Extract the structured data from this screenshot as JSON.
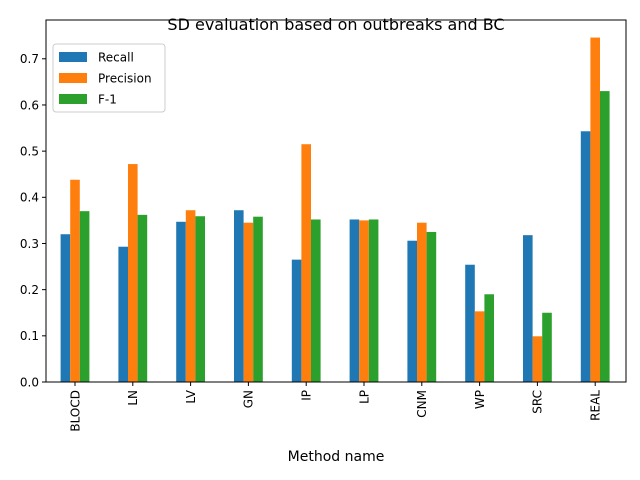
{
  "chart_data": {
    "type": "bar",
    "title": "SD evaluation based on outbreaks and BC",
    "xlabel": "Method name",
    "ylabel": "",
    "categories": [
      "BLOCD",
      "LN",
      "LV",
      "GN",
      "IP",
      "LP",
      "CNM",
      "WP",
      "SRC",
      "REAL"
    ],
    "series": [
      {
        "name": "Recall",
        "color": "#1f77b4",
        "values": [
          0.32,
          0.293,
          0.347,
          0.372,
          0.265,
          0.352,
          0.306,
          0.254,
          0.318,
          0.543
        ]
      },
      {
        "name": "Precision",
        "color": "#ff7f0e",
        "values": [
          0.438,
          0.472,
          0.372,
          0.345,
          0.515,
          0.35,
          0.345,
          0.153,
          0.099,
          0.746
        ]
      },
      {
        "name": "F-1",
        "color": "#2ca02c",
        "values": [
          0.37,
          0.362,
          0.359,
          0.358,
          0.352,
          0.352,
          0.325,
          0.19,
          0.15,
          0.63
        ]
      }
    ],
    "ylim": [
      0,
      0.784
    ],
    "yticks": [
      "0.0",
      "0.1",
      "0.2",
      "0.3",
      "0.4",
      "0.5",
      "0.6",
      "0.7"
    ],
    "grid": false,
    "legend_position": "top-left"
  }
}
